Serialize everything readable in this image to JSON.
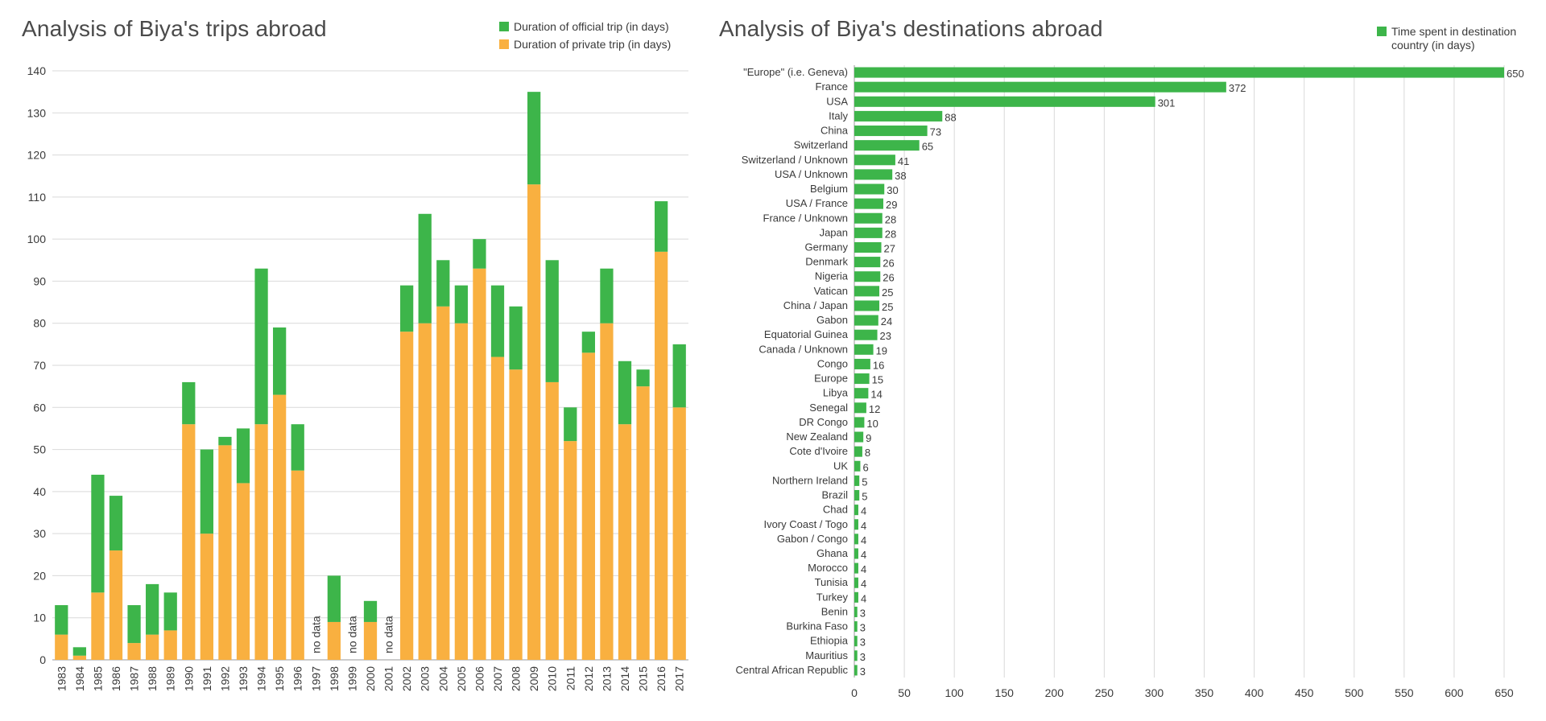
{
  "colors": {
    "official": "#3db54a",
    "private": "#f9b040",
    "grid": "#d9d9d9",
    "axis": "#9a9a9a"
  },
  "chart_data": [
    {
      "type": "bar",
      "stacked": true,
      "title": "Analysis of Biya's trips abroad",
      "categories": [
        "1983",
        "1984",
        "1985",
        "1986",
        "1987",
        "1988",
        "1989",
        "1990",
        "1991",
        "1992",
        "1993",
        "1994",
        "1995",
        "1996",
        "1997",
        "1998",
        "1999",
        "2000",
        "2001",
        "2002",
        "2003",
        "2004",
        "2005",
        "2006",
        "2007",
        "2008",
        "2009",
        "2010",
        "2011",
        "2012",
        "2013",
        "2014",
        "2015",
        "2016",
        "2017"
      ],
      "series": [
        {
          "name": "Duration of private trip (in days)",
          "color": "#f9b040",
          "values": [
            6,
            1,
            16,
            26,
            4,
            6,
            7,
            56,
            30,
            51,
            42,
            56,
            63,
            45,
            null,
            9,
            null,
            9,
            null,
            78,
            80,
            84,
            80,
            93,
            72,
            69,
            113,
            66,
            52,
            73,
            80,
            56,
            65,
            97,
            60
          ]
        },
        {
          "name": "Duration of official trip (in days)",
          "color": "#3db54a",
          "values": [
            7,
            2,
            28,
            13,
            9,
            12,
            9,
            10,
            20,
            2,
            13,
            37,
            16,
            11,
            null,
            11,
            null,
            5,
            null,
            11,
            26,
            11,
            9,
            7,
            17,
            15,
            22,
            29,
            8,
            5,
            13,
            15,
            4,
            12,
            15
          ]
        }
      ],
      "legend_order": [
        "Duration of official trip (in days)",
        "Duration of private trip (in days)"
      ],
      "no_data_label": "no data",
      "ylim": [
        0,
        140
      ],
      "yticks": [
        0,
        10,
        20,
        30,
        40,
        50,
        60,
        70,
        80,
        90,
        100,
        110,
        120,
        130,
        140
      ],
      "grid": true,
      "legend_position": "top-right"
    },
    {
      "type": "bar",
      "orientation": "horizontal",
      "title": "Analysis of Biya's destinations abroad",
      "series_name": "Time spent in destination country (in days)",
      "color": "#3db54a",
      "categories": [
        "\"Europe\" (i.e. Geneva)",
        "France",
        "USA",
        "Italy",
        "China",
        "Switzerland",
        "Switzerland / Unknown",
        "USA / Unknown",
        "Belgium",
        "USA / France",
        "France / Unknown",
        "Japan",
        "Germany",
        "Denmark",
        "Nigeria",
        "Vatican",
        "China / Japan",
        "Gabon",
        "Equatorial Guinea",
        "Canada / Unknown",
        "Congo",
        "Europe",
        "Libya",
        "Senegal",
        "DR Congo",
        "New Zealand",
        "Cote d'Ivoire",
        "UK",
        "Northern Ireland",
        "Brazil",
        "Chad",
        "Ivory Coast / Togo",
        "Gabon / Congo",
        "Ghana",
        "Morocco",
        "Tunisia",
        "Turkey",
        "Benin",
        "Burkina Faso",
        "Ethiopia",
        "Mauritius",
        "Central African Republic"
      ],
      "values": [
        650,
        372,
        301,
        88,
        73,
        65,
        41,
        38,
        30,
        29,
        28,
        28,
        27,
        26,
        26,
        25,
        25,
        24,
        23,
        19,
        16,
        15,
        14,
        12,
        10,
        9,
        8,
        6,
        5,
        5,
        4,
        4,
        4,
        4,
        4,
        4,
        4,
        3,
        3,
        3,
        3,
        3
      ],
      "xlim": [
        0,
        650
      ],
      "xticks": [
        0,
        50,
        100,
        150,
        200,
        250,
        300,
        350,
        400,
        450,
        500,
        550,
        600,
        650
      ],
      "grid": true,
      "legend_position": "top-right",
      "data_labels": true
    }
  ]
}
